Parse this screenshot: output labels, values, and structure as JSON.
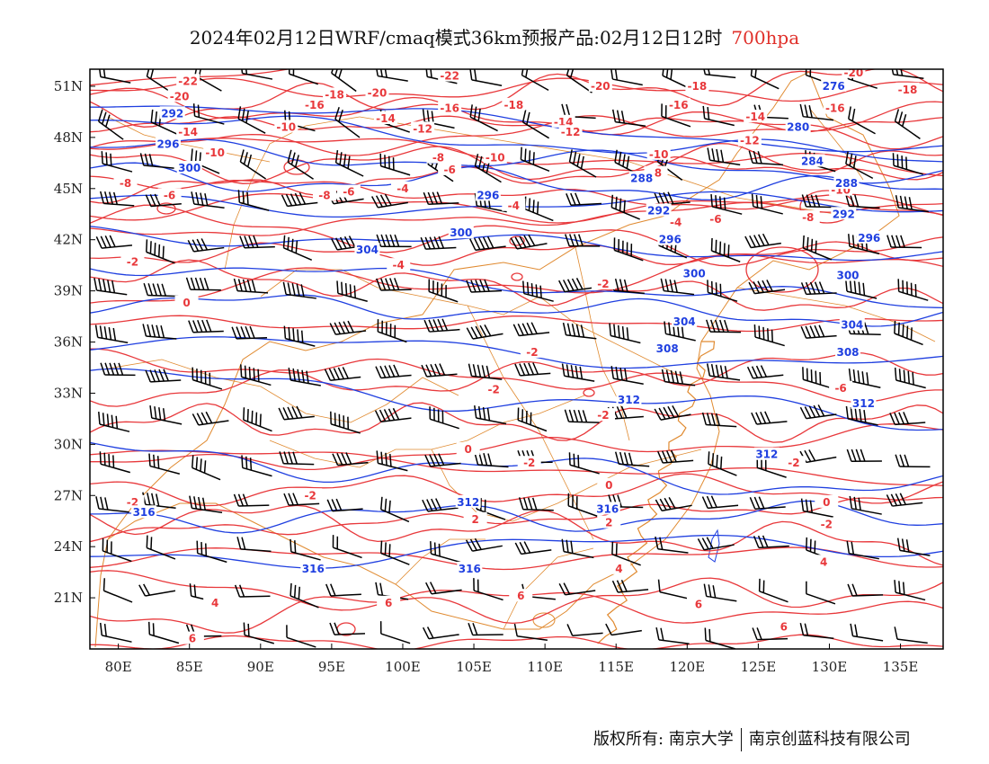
{
  "title": {
    "main": "2024年02月12日WRF/cmaq模式36km预报产品:02月12日12时",
    "level": "700hpa"
  },
  "map": {
    "lon_range": [
      78,
      138
    ],
    "lat_range": [
      18,
      52
    ],
    "x_ticks": [
      "80E",
      "85E",
      "90E",
      "95E",
      "100E",
      "105E",
      "110E",
      "115E",
      "120E",
      "125E",
      "130E",
      "135E"
    ],
    "x_tick_values": [
      80,
      85,
      90,
      95,
      100,
      105,
      110,
      115,
      120,
      125,
      130,
      135
    ],
    "y_ticks": [
      "21N",
      "24N",
      "27N",
      "30N",
      "33N",
      "36N",
      "39N",
      "42N",
      "45N",
      "48N",
      "51N"
    ],
    "y_tick_values": [
      21,
      24,
      27,
      30,
      33,
      36,
      39,
      42,
      45,
      48,
      51
    ],
    "colors": {
      "height_contour": "#1f3fe0",
      "temperature_contour": "#e8383b",
      "boundary": "#e08a30",
      "wind_barb": "#000000",
      "frame": "#000000"
    },
    "height_labels": [
      {
        "text": "292",
        "lon": 83.8,
        "lat": 49.4
      },
      {
        "text": "296",
        "lon": 83.5,
        "lat": 47.6
      },
      {
        "text": "300",
        "lon": 85.0,
        "lat": 46.2
      },
      {
        "text": "276",
        "lon": 130.3,
        "lat": 51.0
      },
      {
        "text": "280",
        "lon": 127.8,
        "lat": 48.6
      },
      {
        "text": "284",
        "lon": 128.8,
        "lat": 46.6
      },
      {
        "text": "288",
        "lon": 116.8,
        "lat": 45.6
      },
      {
        "text": "288",
        "lon": 131.2,
        "lat": 45.3
      },
      {
        "text": "292",
        "lon": 118.0,
        "lat": 43.7
      },
      {
        "text": "292",
        "lon": 131.0,
        "lat": 43.5
      },
      {
        "text": "296",
        "lon": 106.0,
        "lat": 44.6
      },
      {
        "text": "296",
        "lon": 118.8,
        "lat": 42.0
      },
      {
        "text": "296",
        "lon": 132.8,
        "lat": 42.1
      },
      {
        "text": "300",
        "lon": 104.1,
        "lat": 42.4
      },
      {
        "text": "300",
        "lon": 120.5,
        "lat": 40.0
      },
      {
        "text": "300",
        "lon": 131.3,
        "lat": 39.9
      },
      {
        "text": "304",
        "lon": 97.5,
        "lat": 41.4
      },
      {
        "text": "304",
        "lon": 119.8,
        "lat": 37.2
      },
      {
        "text": "304",
        "lon": 131.6,
        "lat": 37.0
      },
      {
        "text": "308",
        "lon": 118.6,
        "lat": 35.6
      },
      {
        "text": "308",
        "lon": 131.3,
        "lat": 35.4
      },
      {
        "text": "312",
        "lon": 115.9,
        "lat": 32.6
      },
      {
        "text": "312",
        "lon": 132.4,
        "lat": 32.4
      },
      {
        "text": "312",
        "lon": 125.6,
        "lat": 29.4
      },
      {
        "text": "312",
        "lon": 104.6,
        "lat": 26.6
      },
      {
        "text": "316",
        "lon": 81.8,
        "lat": 26.0
      },
      {
        "text": "316",
        "lon": 93.7,
        "lat": 22.7
      },
      {
        "text": "316",
        "lon": 104.7,
        "lat": 22.7
      },
      {
        "text": "316",
        "lon": 114.4,
        "lat": 26.2
      }
    ],
    "temperature_labels": [
      {
        "text": "-22",
        "lon": 84.9,
        "lat": 51.3
      },
      {
        "text": "-20",
        "lon": 84.3,
        "lat": 50.4
      },
      {
        "text": "-16",
        "lon": 93.8,
        "lat": 49.9
      },
      {
        "text": "-18",
        "lon": 95.2,
        "lat": 50.5
      },
      {
        "text": "-20",
        "lon": 98.2,
        "lat": 50.6
      },
      {
        "text": "-22",
        "lon": 103.3,
        "lat": 51.6
      },
      {
        "text": "-14",
        "lon": 98.8,
        "lat": 49.1
      },
      {
        "text": "-12",
        "lon": 101.4,
        "lat": 48.5
      },
      {
        "text": "-16",
        "lon": 103.3,
        "lat": 49.7
      },
      {
        "text": "-18",
        "lon": 107.8,
        "lat": 49.9
      },
      {
        "text": "-20",
        "lon": 113.9,
        "lat": 51.0
      },
      {
        "text": "-16",
        "lon": 119.4,
        "lat": 49.9
      },
      {
        "text": "-18",
        "lon": 120.7,
        "lat": 51.0
      },
      {
        "text": "-20",
        "lon": 131.7,
        "lat": 51.8
      },
      {
        "text": "-18",
        "lon": 135.5,
        "lat": 50.8
      },
      {
        "text": "-16",
        "lon": 130.4,
        "lat": 49.7
      },
      {
        "text": "-14",
        "lon": 124.8,
        "lat": 49.2
      },
      {
        "text": "-14",
        "lon": 111.3,
        "lat": 48.9
      },
      {
        "text": "-12",
        "lon": 111.8,
        "lat": 48.3
      },
      {
        "text": "-12",
        "lon": 124.4,
        "lat": 47.8
      },
      {
        "text": "-10",
        "lon": 91.8,
        "lat": 48.6
      },
      {
        "text": "-14",
        "lon": 84.9,
        "lat": 48.3
      },
      {
        "text": "-10",
        "lon": 86.8,
        "lat": 47.1
      },
      {
        "text": "-10",
        "lon": 106.5,
        "lat": 46.8
      },
      {
        "text": "-10",
        "lon": 118.0,
        "lat": 47.0
      },
      {
        "text": "-8",
        "lon": 102.5,
        "lat": 46.8
      },
      {
        "text": "-8",
        "lon": 117.8,
        "lat": 45.9
      },
      {
        "text": "-8",
        "lon": 80.5,
        "lat": 45.3
      },
      {
        "text": "-6",
        "lon": 83.6,
        "lat": 44.6
      },
      {
        "text": "-8",
        "lon": 94.5,
        "lat": 44.6
      },
      {
        "text": "-6",
        "lon": 96.2,
        "lat": 44.8
      },
      {
        "text": "-6",
        "lon": 103.3,
        "lat": 46.1
      },
      {
        "text": "-4",
        "lon": 100.0,
        "lat": 45.0
      },
      {
        "text": "-4",
        "lon": 107.8,
        "lat": 44.0
      },
      {
        "text": "-10",
        "lon": 130.8,
        "lat": 44.9
      },
      {
        "text": "-8",
        "lon": 128.5,
        "lat": 43.3
      },
      {
        "text": "-6",
        "lon": 122.0,
        "lat": 43.2
      },
      {
        "text": "-4",
        "lon": 119.2,
        "lat": 43.0
      },
      {
        "text": "-4",
        "lon": 99.7,
        "lat": 40.5
      },
      {
        "text": "-2",
        "lon": 81.0,
        "lat": 40.7
      },
      {
        "text": "-2",
        "lon": 114.1,
        "lat": 39.4
      },
      {
        "text": "0",
        "lon": 84.8,
        "lat": 38.3
      },
      {
        "text": "-2",
        "lon": 109.1,
        "lat": 35.4
      },
      {
        "text": "-2",
        "lon": 106.4,
        "lat": 33.2
      },
      {
        "text": "-2",
        "lon": 114.1,
        "lat": 31.7
      },
      {
        "text": "-6",
        "lon": 130.8,
        "lat": 33.3
      },
      {
        "text": "0",
        "lon": 104.6,
        "lat": 29.7
      },
      {
        "text": "-2",
        "lon": 108.9,
        "lat": 28.9
      },
      {
        "text": "-2",
        "lon": 127.5,
        "lat": 28.9
      },
      {
        "text": "0",
        "lon": 114.5,
        "lat": 27.6
      },
      {
        "text": "0",
        "lon": 129.8,
        "lat": 26.6
      },
      {
        "text": "2",
        "lon": 105.1,
        "lat": 25.6
      },
      {
        "text": "-2",
        "lon": 81.0,
        "lat": 26.6
      },
      {
        "text": "-2",
        "lon": 93.5,
        "lat": 27.0
      },
      {
        "text": "2",
        "lon": 114.5,
        "lat": 25.4
      },
      {
        "text": "-2",
        "lon": 129.8,
        "lat": 25.3
      },
      {
        "text": "4",
        "lon": 129.6,
        "lat": 23.1
      },
      {
        "text": "4",
        "lon": 115.2,
        "lat": 22.7
      },
      {
        "text": "6",
        "lon": 108.3,
        "lat": 21.1
      },
      {
        "text": "4",
        "lon": 86.8,
        "lat": 20.7
      },
      {
        "text": "6",
        "lon": 99.0,
        "lat": 20.7
      },
      {
        "text": "6",
        "lon": 120.8,
        "lat": 20.6
      },
      {
        "text": "6",
        "lon": 85.2,
        "lat": 18.6
      },
      {
        "text": "6",
        "lon": 126.8,
        "lat": 19.3
      }
    ]
  },
  "footer": {
    "left": "版权所有: 南京大学",
    "right": "南京创蓝科技有限公司"
  }
}
